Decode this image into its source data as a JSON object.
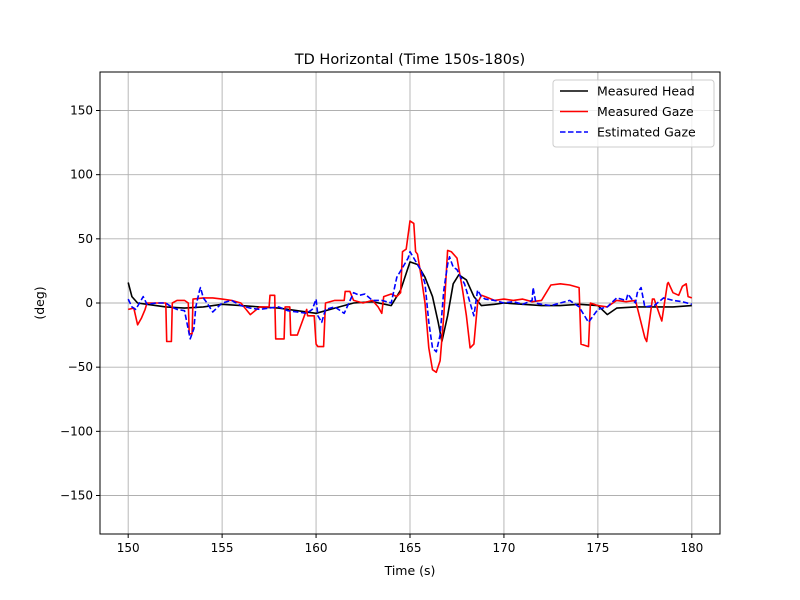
{
  "chart_data": {
    "type": "line",
    "title": "TD Horizontal (Time 150s-180s)",
    "xlabel": "Time (s)",
    "ylabel": "(deg)",
    "xlim": [
      148.5,
      181.5
    ],
    "ylim": [
      -180,
      180
    ],
    "xticks": [
      150,
      155,
      160,
      165,
      170,
      175,
      180
    ],
    "xtick_labels": [
      "150",
      "155",
      "160",
      "165",
      "170",
      "175",
      "180"
    ],
    "yticks": [
      -150,
      -100,
      -50,
      0,
      50,
      100,
      150
    ],
    "ytick_labels": [
      "−150",
      "−100",
      "−50",
      "0",
      "50",
      "100",
      "150"
    ],
    "grid": true,
    "legend_position": "top-right",
    "series": [
      {
        "name": "Measured Head",
        "color": "#000000",
        "dash": "solid",
        "x": [
          150.0,
          150.2,
          150.5,
          151.0,
          152.0,
          153.0,
          154.0,
          155.0,
          156.0,
          157.0,
          158.0,
          159.0,
          160.0,
          161.0,
          162.0,
          163.0,
          164.0,
          164.5,
          165.0,
          165.4,
          165.8,
          166.2,
          166.5,
          166.7,
          167.0,
          167.3,
          167.6,
          168.0,
          168.4,
          168.8,
          169.5,
          170.0,
          171.0,
          172.0,
          173.0,
          174.0,
          175.0,
          175.5,
          176.0,
          177.0,
          178.0,
          179.0,
          180.0
        ],
        "y": [
          16,
          5,
          0,
          -1,
          -3,
          -4,
          -3,
          -1,
          -2,
          -3,
          -4,
          -6,
          -8,
          -4,
          0,
          1,
          -2,
          10,
          32,
          30,
          20,
          5,
          -15,
          -30,
          -10,
          15,
          22,
          18,
          5,
          -2,
          -1,
          0,
          -1,
          -2,
          -2,
          -1,
          -2,
          -9,
          -4,
          -3,
          -3,
          -3,
          -2
        ]
      },
      {
        "name": "Measured Gaze",
        "color": "#ff0000",
        "dash": "solid",
        "x": [
          150.0,
          150.3,
          150.5,
          150.7,
          150.9,
          151.0,
          151.5,
          152.0,
          152.05,
          152.3,
          152.35,
          152.6,
          153.0,
          153.2,
          153.25,
          153.4,
          153.45,
          154.0,
          154.5,
          155.0,
          155.5,
          156.0,
          156.5,
          157.0,
          157.5,
          157.55,
          157.8,
          157.85,
          158.3,
          158.35,
          158.6,
          158.65,
          159.0,
          159.5,
          159.55,
          159.9,
          160.0,
          160.1,
          160.4,
          160.5,
          161.0,
          161.5,
          161.55,
          161.8,
          162.0,
          162.5,
          163.0,
          163.3,
          163.5,
          163.6,
          164.0,
          164.3,
          164.5,
          164.6,
          164.8,
          165.0,
          165.2,
          165.3,
          165.4,
          165.6,
          165.8,
          166.0,
          166.2,
          166.4,
          166.6,
          166.8,
          167.0,
          167.2,
          167.5,
          167.8,
          168.0,
          168.2,
          168.4,
          168.6,
          168.8,
          169.0,
          169.5,
          170.0,
          170.5,
          171.0,
          171.5,
          172.0,
          172.5,
          173.0,
          173.5,
          174.0,
          174.1,
          174.5,
          174.6,
          175.0,
          175.5,
          176.0,
          176.5,
          177.0,
          177.5,
          177.6,
          177.9,
          178.0,
          178.3,
          178.4,
          178.7,
          178.75,
          179.0,
          179.3,
          179.5,
          179.7,
          179.8,
          180.0
        ],
        "y": [
          -5,
          -4,
          -17,
          -12,
          -5,
          0,
          0,
          0,
          -30,
          -30,
          0,
          2,
          2,
          0,
          -24,
          -24,
          3,
          4,
          4,
          3,
          2,
          0,
          -9,
          -3,
          -3,
          6,
          6,
          -28,
          -28,
          -3,
          -3,
          -25,
          -25,
          -5,
          -10,
          -10,
          -32,
          -34,
          -34,
          0,
          2,
          2,
          9,
          9,
          2,
          0,
          2,
          -3,
          -8,
          5,
          7,
          5,
          8,
          40,
          42,
          64,
          62,
          40,
          38,
          20,
          0,
          -35,
          -52,
          -54,
          -45,
          -10,
          41,
          40,
          35,
          10,
          -10,
          -35,
          -32,
          0,
          6,
          5,
          2,
          3,
          2,
          3,
          1,
          2,
          14,
          15,
          14,
          12,
          -32,
          -34,
          0,
          -2,
          -3,
          2,
          1,
          2,
          -27,
          -30,
          3,
          3,
          -10,
          -14,
          15,
          16,
          8,
          6,
          13,
          15,
          5,
          4
        ]
      },
      {
        "name": "Estimated Gaze",
        "color": "#0000ff",
        "dash": "dashed",
        "x": [
          150.0,
          150.2,
          150.4,
          150.6,
          150.8,
          151.0,
          151.5,
          152.0,
          152.3,
          152.6,
          153.0,
          153.3,
          153.5,
          153.6,
          153.8,
          153.85,
          154.0,
          154.2,
          154.5,
          155.0,
          155.5,
          156.0,
          156.5,
          157.0,
          157.5,
          158.0,
          158.5,
          159.0,
          159.5,
          159.8,
          160.0,
          160.1,
          160.3,
          160.5,
          161.0,
          161.5,
          162.0,
          162.3,
          162.6,
          163.0,
          163.5,
          164.0,
          164.3,
          164.5,
          164.7,
          164.9,
          165.0,
          165.2,
          165.4,
          165.6,
          165.8,
          166.0,
          166.2,
          166.4,
          166.6,
          166.8,
          167.0,
          167.1,
          167.3,
          167.5,
          167.7,
          167.9,
          168.0,
          168.2,
          168.4,
          168.6,
          168.8,
          169.0,
          169.5,
          170.0,
          170.5,
          171.0,
          171.5,
          171.55,
          171.7,
          172.0,
          172.5,
          173.0,
          173.5,
          174.0,
          174.5,
          175.0,
          175.5,
          176.0,
          176.5,
          176.6,
          176.8,
          177.0,
          177.1,
          177.3,
          177.5,
          178.0,
          178.5,
          179.0,
          179.5,
          180.0
        ],
        "y": [
          3,
          -3,
          -5,
          0,
          5,
          -1,
          0,
          0,
          -3,
          -5,
          -6,
          -28,
          -20,
          -3,
          10,
          12,
          4,
          0,
          -7,
          0,
          2,
          -2,
          -4,
          -5,
          -4,
          -3,
          -6,
          -7,
          -8,
          -5,
          3,
          -10,
          -15,
          -5,
          -3,
          -8,
          8,
          6,
          7,
          2,
          2,
          0,
          20,
          25,
          30,
          35,
          40,
          35,
          30,
          25,
          15,
          -15,
          -35,
          -38,
          -25,
          10,
          30,
          36,
          28,
          26,
          20,
          15,
          10,
          0,
          -10,
          10,
          5,
          3,
          2,
          0,
          1,
          -1,
          2,
          12,
          0,
          -1,
          -2,
          0,
          2,
          -3,
          -15,
          -5,
          -3,
          4,
          2,
          7,
          3,
          0,
          8,
          12,
          -3,
          -2,
          4,
          2,
          1,
          -1
        ]
      }
    ]
  }
}
